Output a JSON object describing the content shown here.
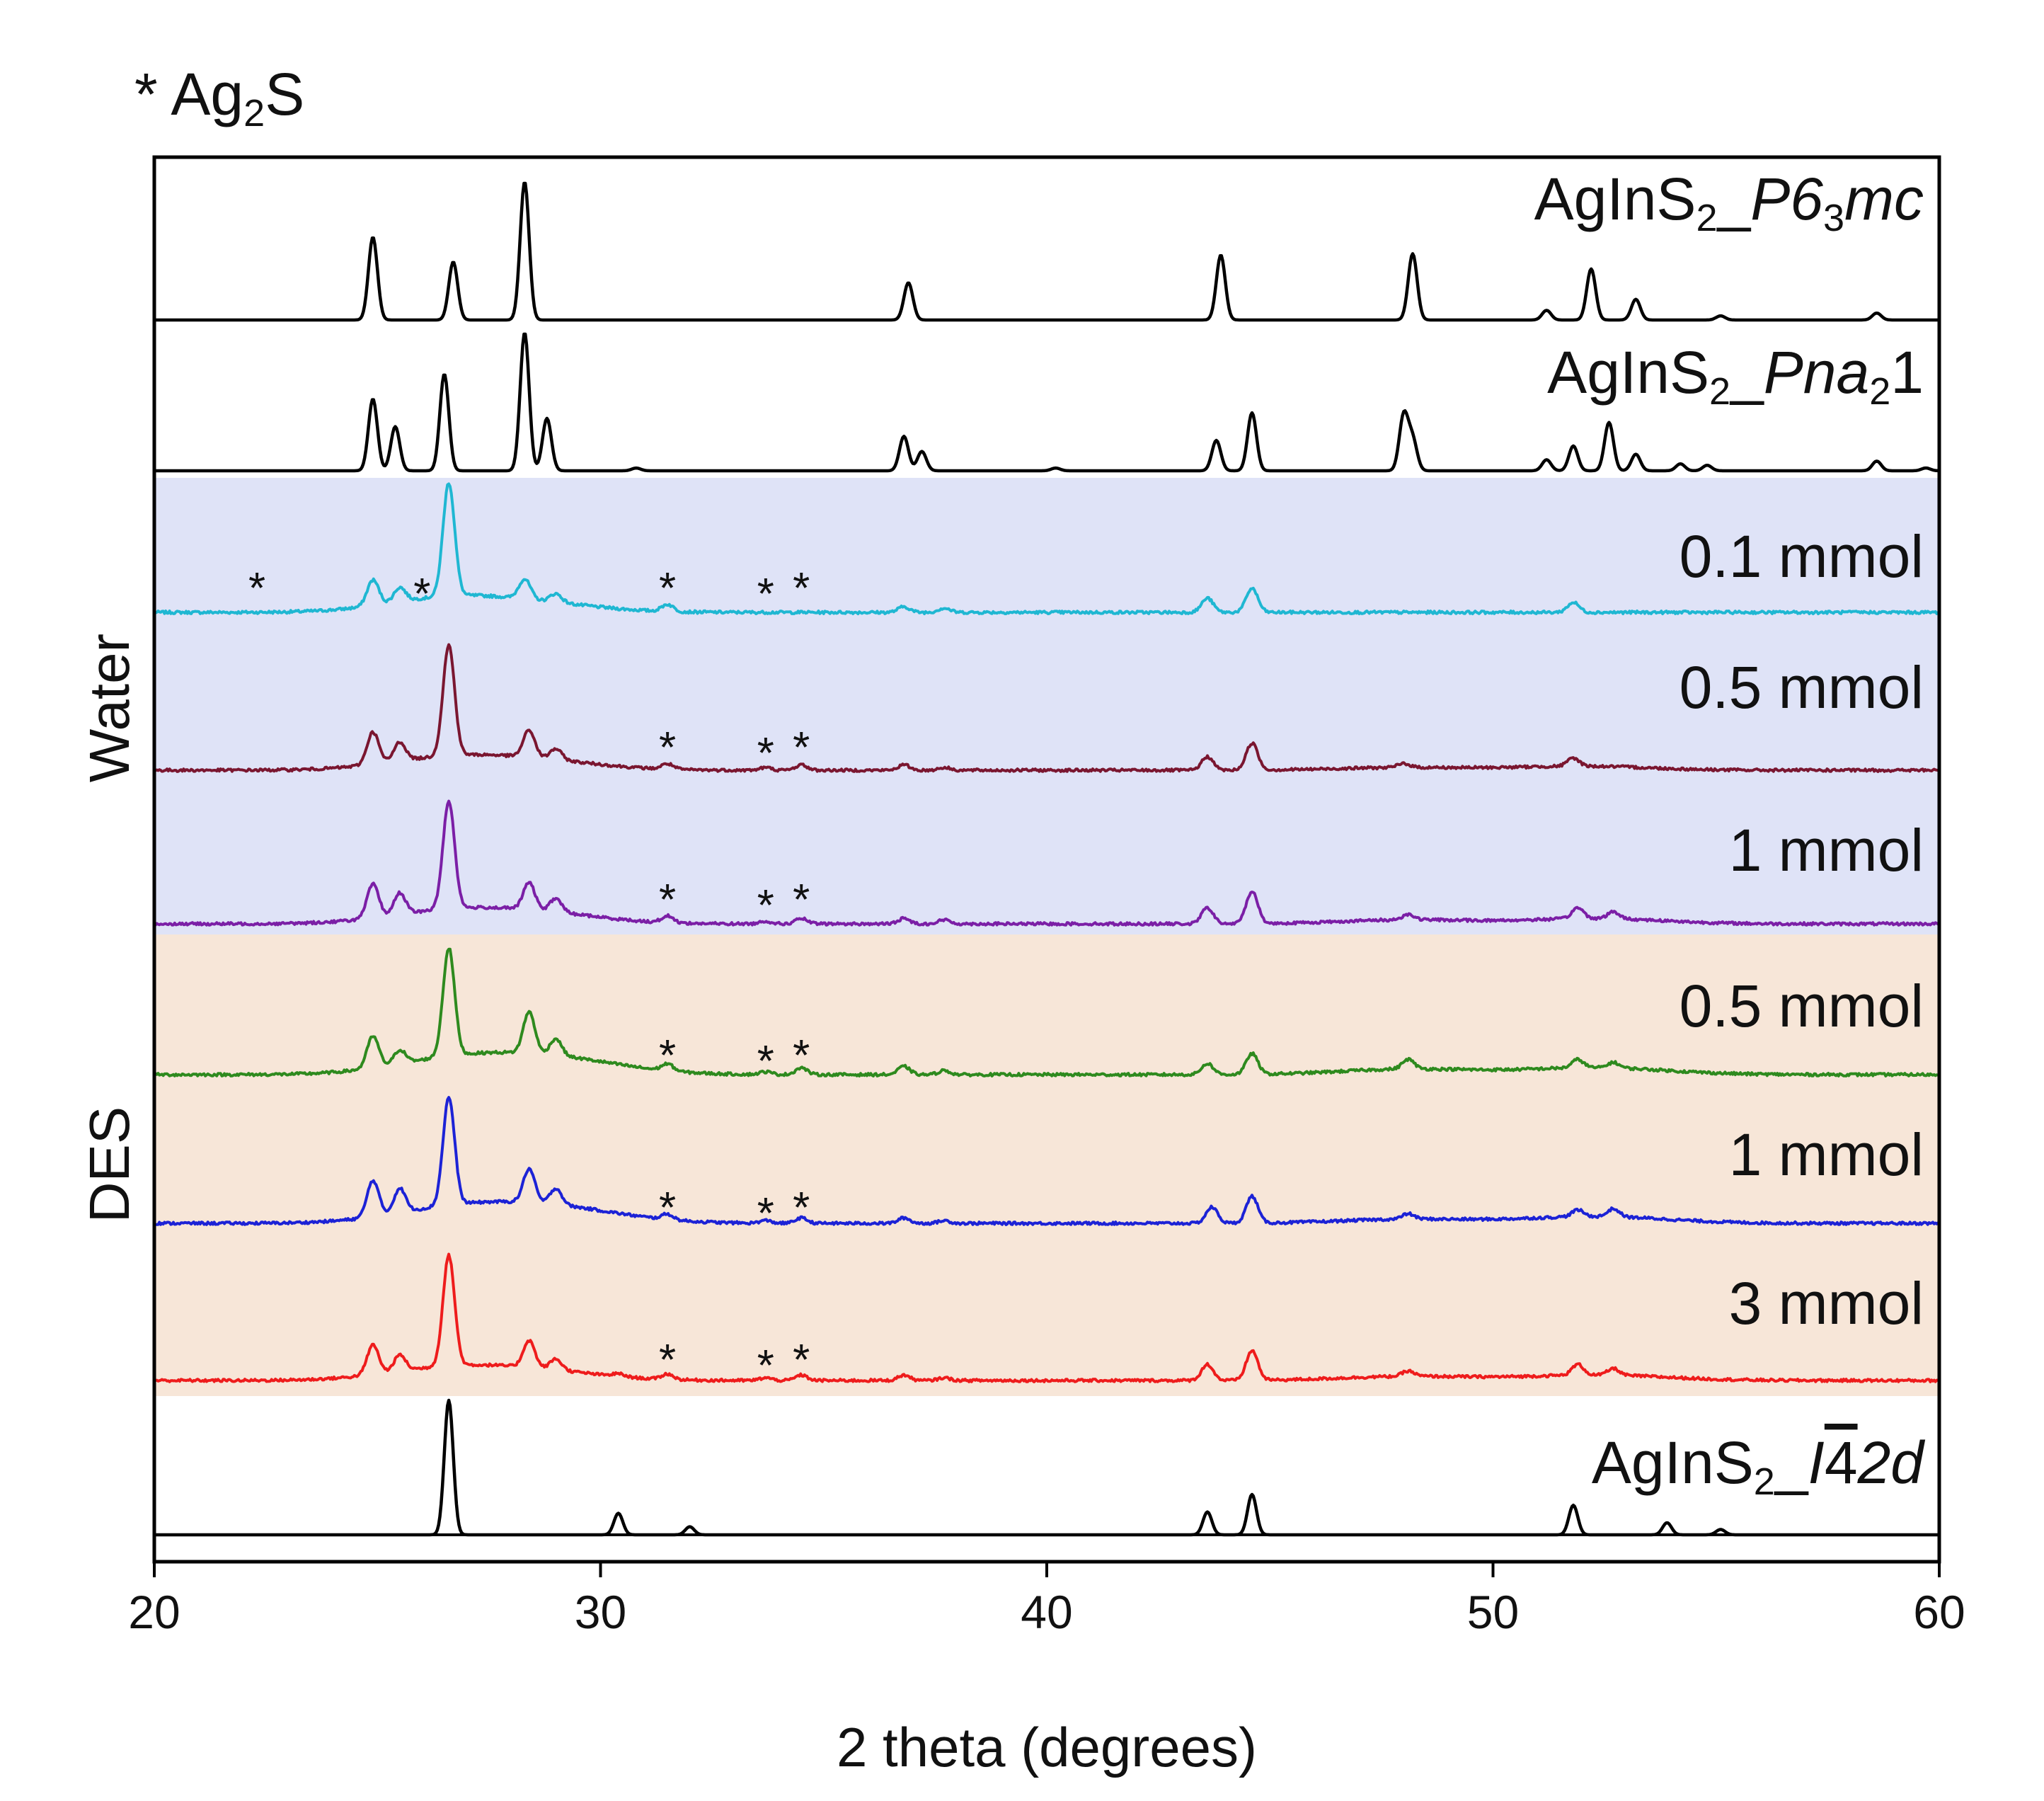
{
  "chart_data": {
    "type": "line",
    "title": "",
    "xlabel": "2 theta (degrees)",
    "ylabel": "",
    "xlim": [
      20,
      60
    ],
    "xticks": [
      20,
      30,
      40,
      50,
      60
    ],
    "legend_note": {
      "marker": "*",
      "phase": "Ag",
      "sub": "2",
      "tail": "S"
    },
    "groups": [
      {
        "name": "Water",
        "color": "#dfe3f7",
        "series_range": [
          2,
          4
        ]
      },
      {
        "name": "DES",
        "color": "#f7e6d8",
        "series_range": [
          5,
          7
        ]
      }
    ],
    "series": [
      {
        "name": "AgInS2_P63mc",
        "label_parts": [
          "AgInS",
          "2",
          "_",
          "P6",
          "3",
          "mc"
        ],
        "color": "#000000",
        "peaks": [
          [
            24.9,
            0.6
          ],
          [
            26.7,
            0.42
          ],
          [
            28.3,
            1.0
          ],
          [
            36.9,
            0.27
          ],
          [
            43.9,
            0.47
          ],
          [
            48.2,
            0.48
          ],
          [
            51.2,
            0.07
          ],
          [
            52.2,
            0.37
          ],
          [
            53.2,
            0.15
          ],
          [
            55.1,
            0.03
          ],
          [
            58.6,
            0.05
          ]
        ],
        "broad": [],
        "stars": []
      },
      {
        "name": "AgInS2_Pna21",
        "label_parts": [
          "AgInS",
          "2",
          "_",
          "Pna",
          "2",
          "1"
        ],
        "color": "#000000",
        "peaks": [
          [
            24.9,
            0.52
          ],
          [
            25.4,
            0.32
          ],
          [
            26.5,
            0.7
          ],
          [
            28.3,
            1.0
          ],
          [
            28.8,
            0.38
          ],
          [
            30.8,
            0.02
          ],
          [
            36.8,
            0.25
          ],
          [
            37.2,
            0.14
          ],
          [
            40.2,
            0.02
          ],
          [
            43.8,
            0.22
          ],
          [
            44.6,
            0.42
          ],
          [
            48.0,
            0.4
          ],
          [
            48.2,
            0.22
          ],
          [
            51.2,
            0.08
          ],
          [
            51.8,
            0.18
          ],
          [
            52.6,
            0.35
          ],
          [
            53.2,
            0.12
          ],
          [
            54.2,
            0.05
          ],
          [
            54.8,
            0.04
          ],
          [
            58.6,
            0.07
          ],
          [
            59.7,
            0.02
          ]
        ],
        "broad": [],
        "stars": []
      },
      {
        "name": "Water 0.1 mmol",
        "label_parts": [
          "0.1 mmol"
        ],
        "color": "#1fb7d2",
        "peaks": [
          [
            24.9,
            0.18
          ],
          [
            25.5,
            0.1
          ],
          [
            26.6,
            0.8
          ],
          [
            28.3,
            0.14
          ],
          [
            29.0,
            0.06
          ],
          [
            31.5,
            0.05
          ],
          [
            36.8,
            0.04
          ],
          [
            37.7,
            0.03
          ],
          [
            43.6,
            0.1
          ],
          [
            44.6,
            0.17
          ],
          [
            51.8,
            0.07
          ]
        ],
        "broad": [
          [
            26.6,
            0.1,
            1.4
          ],
          [
            28.7,
            0.05,
            1.4
          ]
        ],
        "stars": [
          22.3,
          26.0,
          31.5,
          33.7,
          34.5
        ]
      },
      {
        "name": "Water 0.5 mmol",
        "label_parts": [
          "0.5 mmol"
        ],
        "color": "#7a1630",
        "peaks": [
          [
            24.9,
            0.24
          ],
          [
            25.5,
            0.14
          ],
          [
            26.6,
            0.82
          ],
          [
            28.4,
            0.2
          ],
          [
            29.0,
            0.08
          ],
          [
            31.5,
            0.04
          ],
          [
            33.7,
            0.02
          ],
          [
            34.5,
            0.04
          ],
          [
            36.8,
            0.04
          ],
          [
            37.7,
            0.02
          ],
          [
            43.6,
            0.1
          ],
          [
            44.6,
            0.2
          ],
          [
            48.0,
            0.03
          ],
          [
            51.8,
            0.06
          ]
        ],
        "broad": [
          [
            26.6,
            0.09,
            1.4
          ],
          [
            28.7,
            0.06,
            1.4
          ],
          [
            48.0,
            0.02,
            1.5
          ],
          [
            52.0,
            0.03,
            1.5
          ]
        ],
        "stars": [
          31.5,
          33.7,
          34.5
        ]
      },
      {
        "name": "Water 1 mmol",
        "label_parts": [
          "1 mmol"
        ],
        "color": "#7b1fa6",
        "peaks": [
          [
            24.9,
            0.25
          ],
          [
            25.5,
            0.16
          ],
          [
            26.6,
            0.8
          ],
          [
            28.4,
            0.2
          ],
          [
            29.0,
            0.1
          ],
          [
            31.5,
            0.05
          ],
          [
            33.7,
            0.02
          ],
          [
            34.5,
            0.04
          ],
          [
            36.8,
            0.04
          ],
          [
            37.7,
            0.03
          ],
          [
            43.6,
            0.12
          ],
          [
            44.6,
            0.24
          ],
          [
            48.1,
            0.04
          ],
          [
            51.9,
            0.08
          ],
          [
            52.7,
            0.05
          ]
        ],
        "broad": [
          [
            26.6,
            0.09,
            1.4
          ],
          [
            28.7,
            0.07,
            1.4
          ],
          [
            48.1,
            0.03,
            1.5
          ],
          [
            52.3,
            0.04,
            1.5
          ]
        ],
        "stars": [
          31.5,
          33.7,
          34.5
        ]
      },
      {
        "name": "DES 0.5 mmol",
        "label_parts": [
          "0.5 mmol"
        ],
        "color": "#2e8a1e",
        "peaks": [
          [
            24.9,
            0.23
          ],
          [
            25.5,
            0.1
          ],
          [
            26.6,
            0.78
          ],
          [
            28.4,
            0.3
          ],
          [
            29.0,
            0.12
          ],
          [
            31.5,
            0.05
          ],
          [
            33.7,
            0.02
          ],
          [
            34.5,
            0.05
          ],
          [
            36.8,
            0.06
          ],
          [
            37.7,
            0.03
          ],
          [
            43.6,
            0.08
          ],
          [
            44.6,
            0.15
          ],
          [
            48.1,
            0.07
          ],
          [
            51.9,
            0.06
          ],
          [
            52.7,
            0.04
          ]
        ],
        "broad": [
          [
            26.6,
            0.09,
            1.4
          ],
          [
            28.8,
            0.12,
            1.6
          ],
          [
            48.1,
            0.04,
            1.5
          ],
          [
            52.3,
            0.05,
            1.6
          ]
        ],
        "stars": [
          31.5,
          33.7,
          34.5
        ]
      },
      {
        "name": "DES 1 mmol",
        "label_parts": [
          "1 mmol"
        ],
        "color": "#1c22d6",
        "peaks": [
          [
            24.9,
            0.27
          ],
          [
            25.5,
            0.18
          ],
          [
            26.6,
            0.8
          ],
          [
            28.4,
            0.25
          ],
          [
            29.0,
            0.12
          ],
          [
            31.5,
            0.04
          ],
          [
            33.7,
            0.02
          ],
          [
            34.5,
            0.04
          ],
          [
            36.8,
            0.04
          ],
          [
            37.7,
            0.02
          ],
          [
            43.7,
            0.12
          ],
          [
            44.6,
            0.2
          ],
          [
            48.1,
            0.04
          ],
          [
            51.9,
            0.05
          ],
          [
            52.7,
            0.06
          ]
        ],
        "broad": [
          [
            26.6,
            0.09,
            1.4
          ],
          [
            28.8,
            0.12,
            1.6
          ],
          [
            48.1,
            0.03,
            1.5
          ],
          [
            52.3,
            0.05,
            1.6
          ]
        ],
        "stars": [
          31.5,
          33.7,
          34.5
        ]
      },
      {
        "name": "DES 3 mmol",
        "label_parts": [
          "3 mmol"
        ],
        "color": "#ee1c1c",
        "peaks": [
          [
            24.9,
            0.22
          ],
          [
            25.5,
            0.12
          ],
          [
            26.6,
            0.82
          ],
          [
            28.4,
            0.2
          ],
          [
            29.0,
            0.08
          ],
          [
            30.4,
            0.02
          ],
          [
            31.5,
            0.04
          ],
          [
            33.7,
            0.02
          ],
          [
            34.5,
            0.04
          ],
          [
            36.8,
            0.04
          ],
          [
            37.7,
            0.02
          ],
          [
            43.6,
            0.12
          ],
          [
            44.6,
            0.22
          ],
          [
            48.1,
            0.04
          ],
          [
            51.9,
            0.08
          ],
          [
            52.7,
            0.05
          ]
        ],
        "broad": [
          [
            26.6,
            0.09,
            1.4
          ],
          [
            28.7,
            0.06,
            1.4
          ],
          [
            48.1,
            0.03,
            1.5
          ],
          [
            52.3,
            0.04,
            1.6
          ]
        ],
        "stars": [
          31.5,
          33.7,
          34.5
        ]
      },
      {
        "name": "AgInS2_I-42d",
        "label_parts": [
          "AgInS",
          "2",
          "_",
          "I",
          "4",
          "2d"
        ],
        "color": "#000000",
        "peaks": [
          [
            26.6,
            1.0
          ],
          [
            30.4,
            0.16
          ],
          [
            32.0,
            0.06
          ],
          [
            43.6,
            0.17
          ],
          [
            44.6,
            0.3
          ],
          [
            51.8,
            0.22
          ],
          [
            53.9,
            0.09
          ],
          [
            55.1,
            0.04
          ]
        ],
        "broad": [],
        "stars": []
      }
    ]
  }
}
